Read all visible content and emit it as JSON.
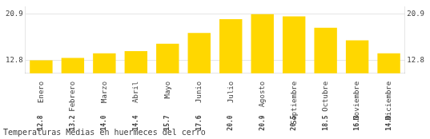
{
  "chart_data": {
    "type": "bar",
    "title": "Temperaturas Medias en huermeces del cerro",
    "categories": [
      "Enero",
      "Febrero",
      "Marzo",
      "Abril",
      "Mayo",
      "Junio",
      "Julio",
      "Agosto",
      "Septiembre",
      "Octubre",
      "Noviembre",
      "Diciembre"
    ],
    "values": [
      12.8,
      13.2,
      14.0,
      14.4,
      15.7,
      17.6,
      20.0,
      20.9,
      20.5,
      18.5,
      16.3,
      14.0
    ],
    "value_labels": [
      "12.8",
      "13.2",
      "14.0",
      "14.4",
      "15.7",
      "17.6",
      "20.0",
      "20.9",
      "20.5",
      "18.5",
      "16.3",
      "14.0"
    ],
    "color": "#FFD700",
    "ylim": [
      10.5,
      22.2
    ],
    "yticks": [
      12.8,
      20.9
    ],
    "y2lim": [
      10.5,
      22.2
    ],
    "y2ticks": [
      12.8,
      20.9
    ],
    "grid": true,
    "data_labels": true
  }
}
